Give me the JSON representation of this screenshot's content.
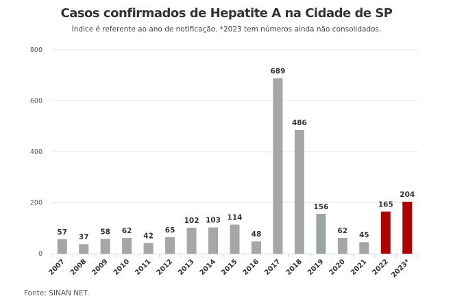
{
  "chart_data": {
    "type": "bar",
    "title": "Casos confirmados de Hepatite A na Cidade de SP",
    "subtitle": "Índice é referente ao ano de notificação. *2023 tem números ainda não consolidados.",
    "source": "Fonte: SINAN NET.",
    "categories": [
      "2007",
      "2008",
      "2009",
      "2010",
      "2011",
      "2012",
      "2013",
      "2014",
      "2015",
      "2016",
      "2017",
      "2018",
      "2019",
      "2020",
      "2021",
      "2022",
      "2023*"
    ],
    "values": [
      57,
      37,
      58,
      62,
      42,
      65,
      102,
      103,
      114,
      48,
      689,
      486,
      156,
      62,
      45,
      165,
      204
    ],
    "colors": [
      "#a6a6a6",
      "#a6a6a6",
      "#a6a6a6",
      "#a6a6a6",
      "#a6a6a6",
      "#a6a6a6",
      "#a6a6a6",
      "#a6a6a6",
      "#a6a6a6",
      "#a6a6a6",
      "#a6a6a6",
      "#a6a6a6",
      "#9aa5a3",
      "#a6a6a6",
      "#a6a6a6",
      "#b00000",
      "#b00000"
    ],
    "yticks": [
      0,
      200,
      400,
      600,
      800
    ],
    "ylim": [
      0,
      800
    ],
    "xlabel": "",
    "ylabel": "",
    "grid": true,
    "data_labels": true
  }
}
